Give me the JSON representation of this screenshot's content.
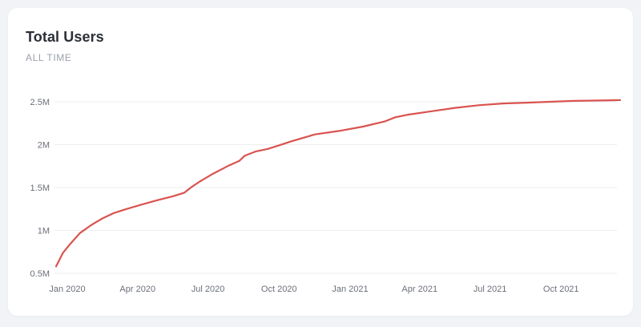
{
  "card": {
    "title": "Total Users",
    "subtitle": "ALL TIME"
  },
  "colors": {
    "line": "#d9534f",
    "grid": "#eceef1",
    "background": "#ffffff",
    "page": "#f1f3f6"
  },
  "chart_data": {
    "type": "line",
    "title": "Total Users",
    "subtitle": "ALL TIME",
    "xlabel": "",
    "ylabel": "",
    "grid": true,
    "legend": "none",
    "ylim": [
      0.5,
      2.5
    ],
    "xlim": [
      "2020-01-01",
      "2021-12-31"
    ],
    "y_ticks": [
      {
        "value": 2.5,
        "label": "2.5M"
      },
      {
        "value": 2.0,
        "label": "2M"
      },
      {
        "value": 1.5,
        "label": "1.5M"
      },
      {
        "value": 1.0,
        "label": "1M"
      },
      {
        "value": 0.5,
        "label": "0.5M"
      }
    ],
    "x_ticks": [
      {
        "date": "2020-01-01",
        "label": "Jan 2020"
      },
      {
        "date": "2020-04-01",
        "label": "Apr 2020"
      },
      {
        "date": "2020-07-01",
        "label": "Jul 2020"
      },
      {
        "date": "2020-10-01",
        "label": "Oct 2020"
      },
      {
        "date": "2021-01-01",
        "label": "Jan 2021"
      },
      {
        "date": "2021-04-01",
        "label": "Apr 2021"
      },
      {
        "date": "2021-07-01",
        "label": "Jul 2021"
      },
      {
        "date": "2021-10-01",
        "label": "Oct 2021"
      }
    ],
    "series": [
      {
        "values": [
          {
            "x": "2020-01-01",
            "y": 0.58
          },
          {
            "x": "2020-01-10",
            "y": 0.74
          },
          {
            "x": "2020-01-20",
            "y": 0.85
          },
          {
            "x": "2020-02-01",
            "y": 0.97
          },
          {
            "x": "2020-02-15",
            "y": 1.06
          },
          {
            "x": "2020-03-01",
            "y": 1.14
          },
          {
            "x": "2020-03-15",
            "y": 1.2
          },
          {
            "x": "2020-04-01",
            "y": 1.25
          },
          {
            "x": "2020-04-20",
            "y": 1.3
          },
          {
            "x": "2020-05-10",
            "y": 1.35
          },
          {
            "x": "2020-06-01",
            "y": 1.4
          },
          {
            "x": "2020-06-15",
            "y": 1.44
          },
          {
            "x": "2020-06-25",
            "y": 1.51
          },
          {
            "x": "2020-07-05",
            "y": 1.57
          },
          {
            "x": "2020-07-20",
            "y": 1.65
          },
          {
            "x": "2020-08-10",
            "y": 1.75
          },
          {
            "x": "2020-08-25",
            "y": 1.81
          },
          {
            "x": "2020-09-01",
            "y": 1.87
          },
          {
            "x": "2020-09-15",
            "y": 1.92
          },
          {
            "x": "2020-10-01",
            "y": 1.95
          },
          {
            "x": "2020-10-15",
            "y": 1.99
          },
          {
            "x": "2020-11-01",
            "y": 2.04
          },
          {
            "x": "2020-12-01",
            "y": 2.12
          },
          {
            "x": "2021-01-01",
            "y": 2.16
          },
          {
            "x": "2021-02-01",
            "y": 2.21
          },
          {
            "x": "2021-03-01",
            "y": 2.27
          },
          {
            "x": "2021-03-15",
            "y": 2.32
          },
          {
            "x": "2021-04-01",
            "y": 2.35
          },
          {
            "x": "2021-05-01",
            "y": 2.39
          },
          {
            "x": "2021-06-01",
            "y": 2.43
          },
          {
            "x": "2021-07-01",
            "y": 2.46
          },
          {
            "x": "2021-08-01",
            "y": 2.48
          },
          {
            "x": "2021-09-01",
            "y": 2.49
          },
          {
            "x": "2021-10-01",
            "y": 2.5
          },
          {
            "x": "2021-11-01",
            "y": 2.51
          },
          {
            "x": "2021-12-31",
            "y": 2.52
          }
        ]
      }
    ]
  }
}
